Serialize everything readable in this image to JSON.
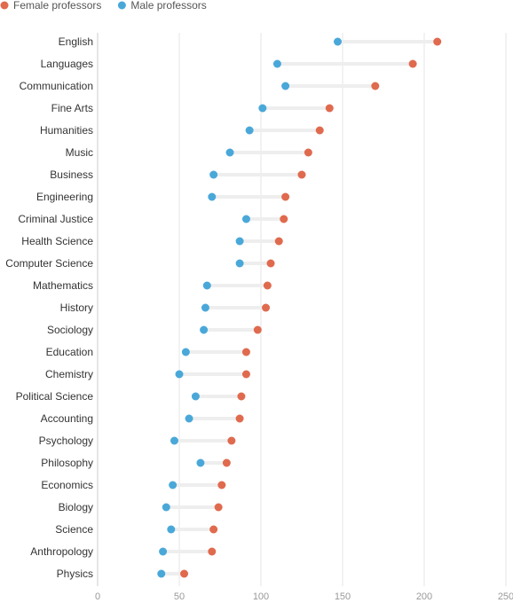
{
  "chart_data": {
    "type": "scatter",
    "subtype": "dumbbell",
    "title": "",
    "xlabel": "",
    "ylabel": "",
    "xlim": [
      0,
      250
    ],
    "xticks": [
      0,
      50,
      100,
      150,
      200,
      250
    ],
    "grid": "vertical",
    "legend_position": "top-left",
    "categories": [
      "English",
      "Languages",
      "Communication",
      "Fine Arts",
      "Humanities",
      "Music",
      "Business",
      "Engineering",
      "Criminal Justice",
      "Health Science",
      "Computer Science",
      "Mathematics",
      "History",
      "Sociology",
      "Education",
      "Chemistry",
      "Political Science",
      "Accounting",
      "Psychology",
      "Philosophy",
      "Economics",
      "Biology",
      "Science",
      "Anthropology",
      "Physics"
    ],
    "series": [
      {
        "name": "Female professors",
        "color": "#e06a4e",
        "values": [
          208,
          193,
          170,
          142,
          136,
          129,
          125,
          115,
          114,
          111,
          106,
          104,
          103,
          98,
          91,
          91,
          88,
          87,
          82,
          79,
          76,
          74,
          71,
          70,
          53
        ]
      },
      {
        "name": "Male professors",
        "color": "#4aa8d9",
        "values": [
          147,
          110,
          115,
          101,
          93,
          81,
          71,
          70,
          91,
          87,
          87,
          67,
          66,
          65,
          54,
          50,
          60,
          56,
          47,
          63,
          46,
          42,
          45,
          40,
          39
        ]
      }
    ]
  }
}
